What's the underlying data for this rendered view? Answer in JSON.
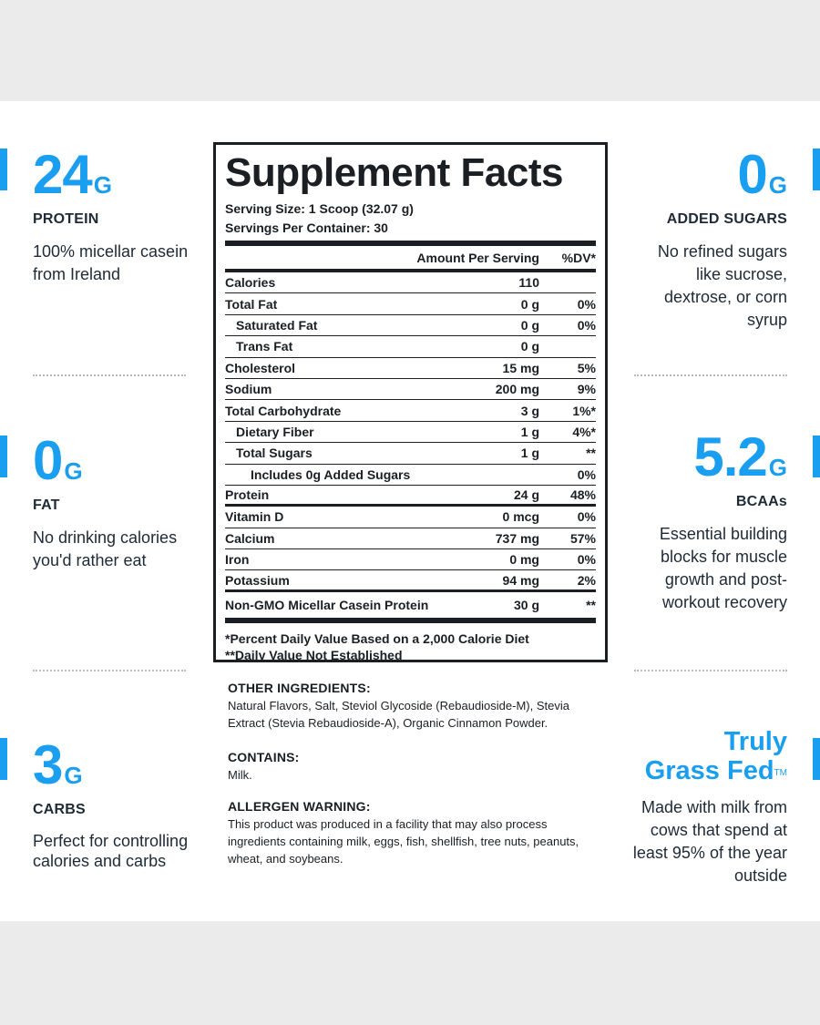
{
  "left": [
    {
      "value": "24",
      "unit": "G",
      "label": "PROTEIN",
      "desc": "100% micellar casein from Ireland"
    },
    {
      "value": "0",
      "unit": "G",
      "label": "FAT",
      "desc": "No drinking calories you'd rather eat"
    },
    {
      "value": "3",
      "unit": "G",
      "label": "CARBS",
      "desc": "Perfect for controlling calories and carbs"
    }
  ],
  "right": [
    {
      "value": "0",
      "unit": "G",
      "label": "ADDED SUGARS",
      "desc": "No refined sugars like sucrose, dextrose, or corn syrup"
    },
    {
      "value": "5.2",
      "unit": "G",
      "label": "BCAAs",
      "desc": "Essential building blocks for muscle growth and post-workout recovery"
    },
    {
      "brand_line1": "Truly",
      "brand_line2": "Grass Fed",
      "brand_tm": "TM",
      "desc": "Made with milk from cows that spend at least 95% of the year outside"
    }
  ],
  "facts": {
    "title": "Supplement Facts",
    "serving_size": "Serving Size: 1 Scoop (32.07 g)",
    "servings_per_container": "Servings Per Container: 30",
    "header_amount": "Amount Per Serving",
    "header_dv": "%DV*",
    "rows": [
      {
        "name": "Calories",
        "amount": "110",
        "dv": ""
      },
      {
        "name": "Total Fat",
        "amount": "0 g",
        "dv": "0%"
      },
      {
        "name": "Saturated Fat",
        "amount": "0 g",
        "dv": "0%"
      },
      {
        "name": "Trans Fat",
        "amount": "0 g",
        "dv": ""
      },
      {
        "name": "Cholesterol",
        "amount": "15 mg",
        "dv": "5%"
      },
      {
        "name": "Sodium",
        "amount": "200 mg",
        "dv": "9%"
      },
      {
        "name": "Total Carbohydrate",
        "amount": "3 g",
        "dv": "1%*"
      },
      {
        "name": "Dietary Fiber",
        "amount": "1 g",
        "dv": "4%*"
      },
      {
        "name": "Total Sugars",
        "amount": "1 g",
        "dv": "**"
      },
      {
        "name": "Includes 0g Added Sugars",
        "amount": "",
        "dv": "0%"
      },
      {
        "name": "Protein",
        "amount": "24 g",
        "dv": "48%"
      },
      {
        "name": "Vitamin D",
        "amount": "0 mcg",
        "dv": "0%"
      },
      {
        "name": "Calcium",
        "amount": "737 mg",
        "dv": "57%"
      },
      {
        "name": "Iron",
        "amount": "0 mg",
        "dv": "0%"
      },
      {
        "name": "Potassium",
        "amount": "94 mg",
        "dv": "2%"
      },
      {
        "name": "Non-GMO Micellar Casein Protein",
        "amount": "30 g",
        "dv": "**"
      }
    ],
    "footnote1": "*Percent Daily Value Based on a 2,000 Calorie Diet",
    "footnote2": "**Daily Value Not Established"
  },
  "ingredients": {
    "other_title": "OTHER INGREDIENTS:",
    "other_text": "Natural Flavors, Salt, Steviol Glycoside (Rebaudioside-M), Stevia Extract (Stevia Rebaudioside-A), Organic Cinnamon Powder.",
    "contains_title": "CONTAINS:",
    "contains_text": "Milk.",
    "allergen_title": "ALLERGEN WARNING:",
    "allergen_text": "This product was produced in a facility that may also process ingredients containing milk, eggs, fish, shellfish, tree nuts, peanuts, wheat, and soybeans."
  },
  "colors": {
    "accent": "#1a9ef0",
    "text": "#1e2a36",
    "background": "#ebebeb"
  }
}
